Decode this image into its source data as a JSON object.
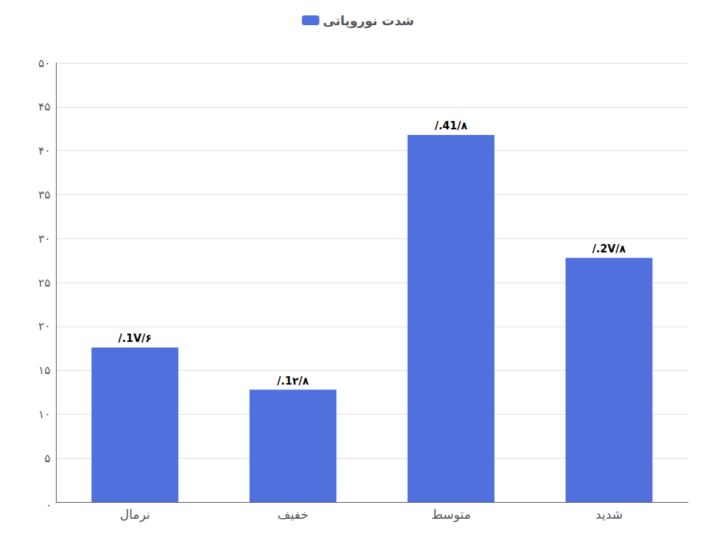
{
  "chart_data": {
    "type": "bar",
    "categories": [
      "نرمال",
      "خفیف",
      "متوسط",
      "شدید"
    ],
    "series": [
      {
        "name": "شدت نوروپاتی",
        "values": [
          17.6,
          12.8,
          41.8,
          27.8
        ],
        "value_labels": [
          "/.1V/۶",
          "/.1۲/۸",
          "/.41/۸",
          "/.2V/۸"
        ]
      }
    ],
    "ylim": [
      0,
      50
    ],
    "yticks": [
      {
        "value": 0,
        "label": "."
      },
      {
        "value": 5,
        "label": "۵"
      },
      {
        "value": 10,
        "label": "۱۰"
      },
      {
        "value": 15,
        "label": "۱۵"
      },
      {
        "value": 20,
        "label": "۲۰"
      },
      {
        "value": 25,
        "label": "۲۵"
      },
      {
        "value": 30,
        "label": "۳۰"
      },
      {
        "value": 35,
        "label": "۳۵"
      },
      {
        "value": 40,
        "label": "۴۰"
      },
      {
        "value": 45,
        "label": "۴۵"
      },
      {
        "value": 50,
        "label": "۵۰"
      }
    ],
    "grid": true,
    "legend": "top",
    "data_labels": true
  }
}
